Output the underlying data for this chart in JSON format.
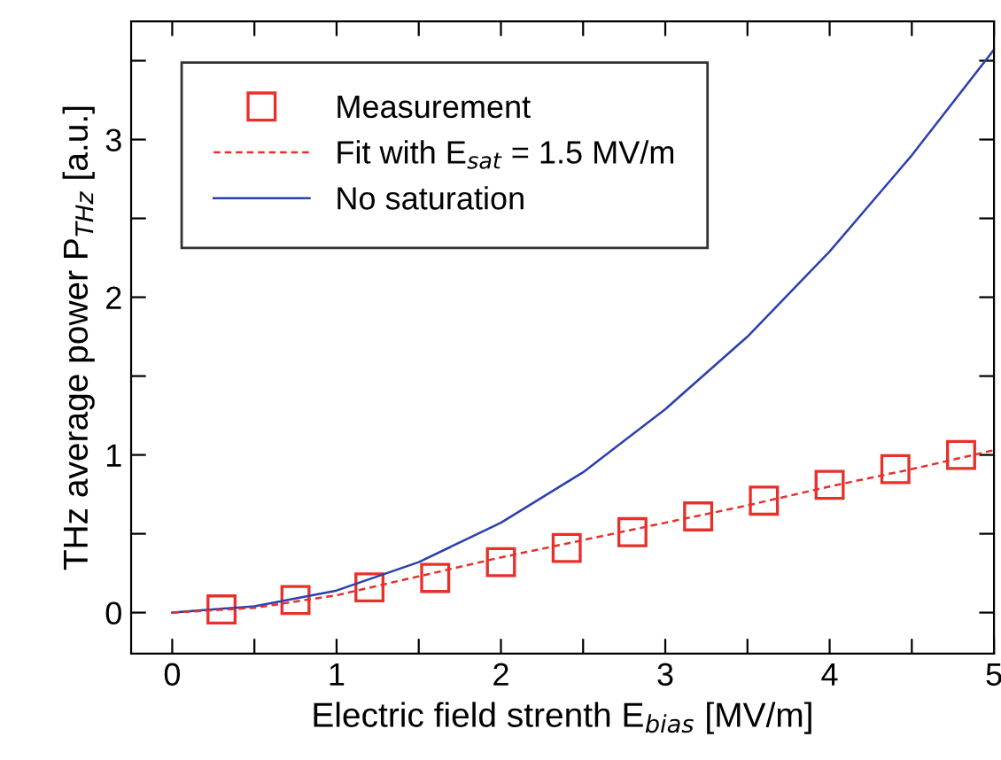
{
  "chart_data": {
    "type": "line",
    "xlabel": "Electric field strenth E$_{bias}$ [MV/m]",
    "ylabel": "THz average power P$_{THz}$ [a.u.]",
    "xlim": [
      -0.25,
      5
    ],
    "ylim": [
      -0.26,
      3.75
    ],
    "xticks": [
      0,
      {
        "value": 0.5,
        "label": null
      },
      1,
      {
        "value": 1.5,
        "label": null
      },
      2,
      {
        "value": 2.5,
        "label": null
      },
      3,
      {
        "value": 3.5,
        "label": null
      },
      4,
      {
        "value": 4.5,
        "label": null
      },
      5
    ],
    "yticks": [
      0,
      {
        "value": 0.5,
        "label": null
      },
      1,
      {
        "value": 1.5,
        "label": null
      },
      2,
      {
        "value": 2.5,
        "label": null
      },
      3,
      {
        "value": 3.5,
        "label": null
      }
    ],
    "grid": false,
    "legend": "top left",
    "series": [
      {
        "name": "Measurement",
        "type": "scatter",
        "marker": "square",
        "color": "#e8302a",
        "x": [
          0.3,
          0.75,
          1.2,
          1.6,
          2.0,
          2.4,
          2.8,
          3.2,
          3.6,
          4.0,
          4.4,
          4.8
        ],
        "values": [
          0.02,
          0.08,
          0.16,
          0.22,
          0.32,
          0.41,
          0.51,
          0.61,
          0.71,
          0.81,
          0.91,
          1.0
        ]
      },
      {
        "name": "Fit with E$_{sat}$ = 1.5 MV/m",
        "line_style": "dashed",
        "marker": "none",
        "color": "#e8302a",
        "x": [
          0,
          0.5,
          1,
          1.5,
          2,
          2.5,
          3,
          3.5,
          4,
          4.5,
          5
        ],
        "values": [
          0,
          0.03,
          0.11,
          0.23,
          0.35,
          0.46,
          0.57,
          0.68,
          0.8,
          0.91,
          1.03
        ]
      },
      {
        "name": "No saturation",
        "line_style": "solid",
        "marker": "none",
        "color": "#2b3fb0",
        "x": [
          0,
          0.5,
          1,
          1.5,
          2,
          2.5,
          3,
          3.5,
          4,
          4.5,
          5
        ],
        "values": [
          0,
          0.04,
          0.14,
          0.32,
          0.57,
          0.89,
          1.29,
          1.75,
          2.29,
          2.9,
          3.57
        ]
      }
    ]
  }
}
